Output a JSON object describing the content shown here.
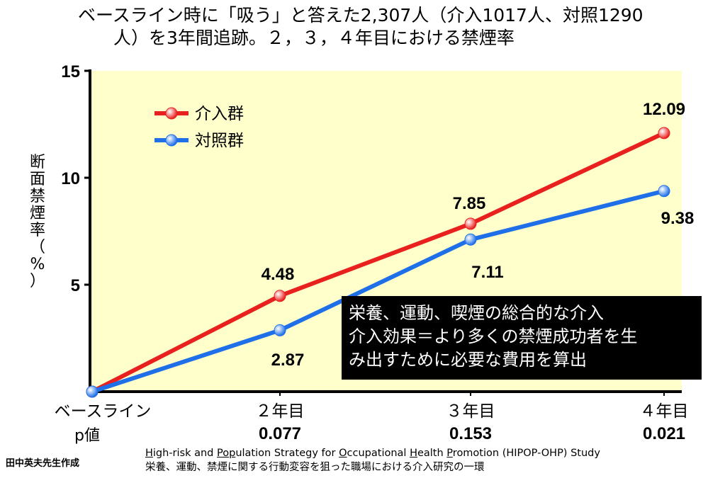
{
  "title_line1": "ベースライン時に「吸う」と答えた2,307人（介入1017人、対照1290",
  "title_line2": "人）を3年間追跡。２，３，４年目における禁煙率",
  "ylabel_chars": [
    "断",
    "面",
    "禁",
    "煙",
    "率",
    "（",
    "%",
    "）"
  ],
  "chart_data": {
    "type": "line",
    "categories": [
      "ベースライン",
      "２年目",
      "３年目",
      "４年目"
    ],
    "ylabel": "断面禁煙率（%）",
    "ylim": [
      0,
      15
    ],
    "yticks": [
      "5",
      "10",
      "15"
    ],
    "series": [
      {
        "name": "介入群",
        "color": "#e8201e",
        "values": [
          0,
          4.48,
          7.85,
          12.09
        ],
        "labels": [
          "",
          "4.48",
          "7.85",
          "12.09"
        ]
      },
      {
        "name": "対照群",
        "color": "#1e6fe8",
        "values": [
          0,
          2.87,
          7.11,
          9.38
        ],
        "labels": [
          "",
          "2.87",
          "7.11",
          "9.38"
        ]
      }
    ],
    "legend_position": "top-left",
    "plot_background": "#ffffcc",
    "p_label": "p値",
    "p_values": [
      "",
      "0.077",
      "0.153",
      "0.021"
    ]
  },
  "note_lines": [
    "栄養、運動、喫煙の総合的な介入",
    "介入効果＝より多くの禁煙成功者を生",
    "み出すために必要な費用を算出"
  ],
  "credit": "田中英夫先生作成",
  "footnote_line2": "栄養、運動、禁煙に関する行動変容を狙った職場における介入研究の一環"
}
